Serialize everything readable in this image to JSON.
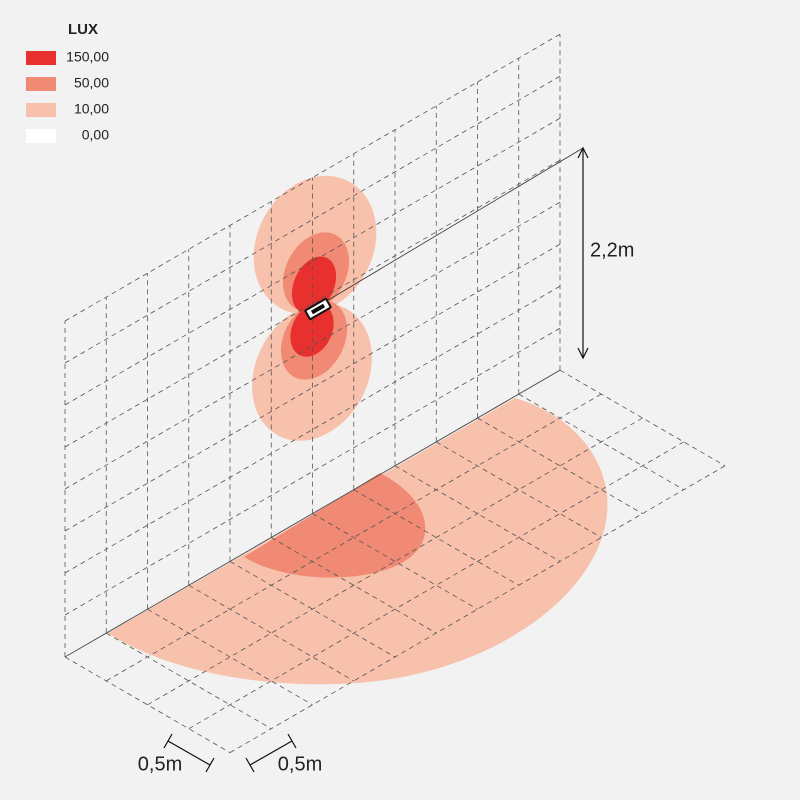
{
  "legend": {
    "title": "LUX",
    "items": [
      {
        "label": "150,00",
        "color": "#e8302e"
      },
      {
        "label": "50,00",
        "color": "#f08a74"
      },
      {
        "label": "10,00",
        "color": "#f8c1ab"
      },
      {
        "label": "0,00",
        "color": "#ffffff"
      }
    ]
  },
  "dimensions": {
    "height": "2,2m",
    "grid_width": "0,5m",
    "grid_depth": "0,5m"
  }
}
